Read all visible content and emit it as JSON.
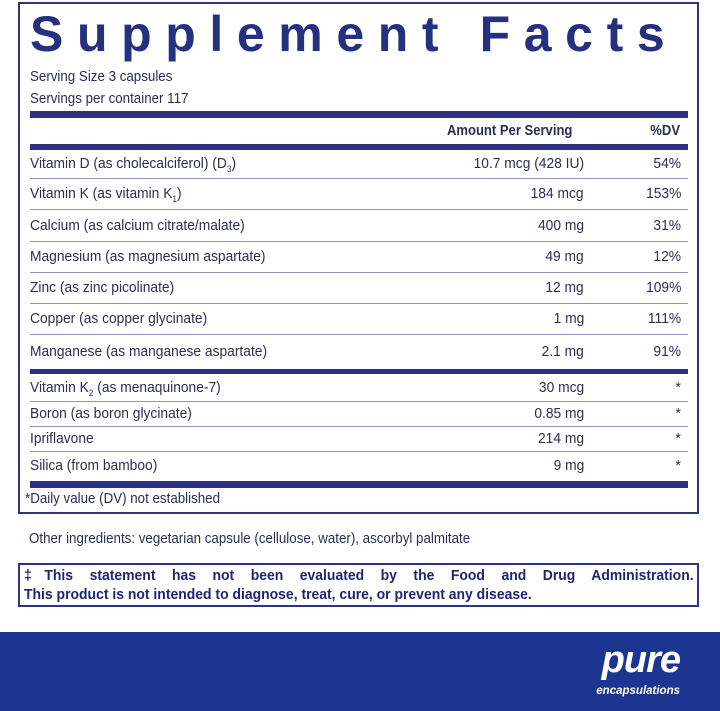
{
  "title": "Supplement Facts",
  "serving_size": "Serving Size  3  capsules",
  "servings_per_container": "Servings per container  117",
  "headers": {
    "amount": "Amount Per Serving",
    "dv": "%DV"
  },
  "rows": [
    {
      "name": "Vitamin D (as cholecalciferol) (D",
      "sub": "3",
      "suffix": ")",
      "amount": "10.7 mcg (428 IU)",
      "dv": "54%"
    },
    {
      "name": "Vitamin K (as vitamin K",
      "sub": "1",
      "suffix": ")",
      "amount": "184 mcg",
      "dv": "153%"
    },
    {
      "name": "Calcium (as calcium citrate/malate)",
      "amount": "400 mg",
      "dv": "31%"
    },
    {
      "name": "Magnesium (as magnesium aspartate)",
      "amount": "49 mg",
      "dv": "12%"
    },
    {
      "name": "Zinc (as zinc picolinate)",
      "amount": "12 mg",
      "dv": "109%"
    },
    {
      "name": "Copper (as copper glycinate)",
      "amount": "1 mg",
      "dv": "111%"
    },
    {
      "name": "Manganese (as manganese aspartate)",
      "amount": "2.1 mg",
      "dv": "91%"
    },
    {
      "name": "Vitamin K",
      "sub": "2",
      "suffix": " (as menaquinone-7)",
      "amount": "30 mcg",
      "dv": "*"
    },
    {
      "name": "Boron (as boron glycinate)",
      "amount": "0.85 mg",
      "dv": "*"
    },
    {
      "name": "Ipriflavone",
      "amount": "214 mg",
      "dv": "*"
    },
    {
      "name": "Silica (from bamboo)",
      "amount": "9 mg",
      "dv": "*"
    }
  ],
  "dv_note": "*Daily value (DV) not established",
  "other_ingredients": "Other ingredients: vegetarian capsule (cellulose, water), ascorbyl palmitate",
  "disclaimer": {
    "line1": "‡This statement has not been evaluated by the Food and Drug Administration.",
    "line2": "This product is not intended to diagnose, treat, cure, or prevent any disease."
  },
  "brand": {
    "name": "pure",
    "tagline": "encapsulations",
    "registered": "®"
  },
  "colors": {
    "navy": "#263080",
    "footer": "#1b3590"
  }
}
